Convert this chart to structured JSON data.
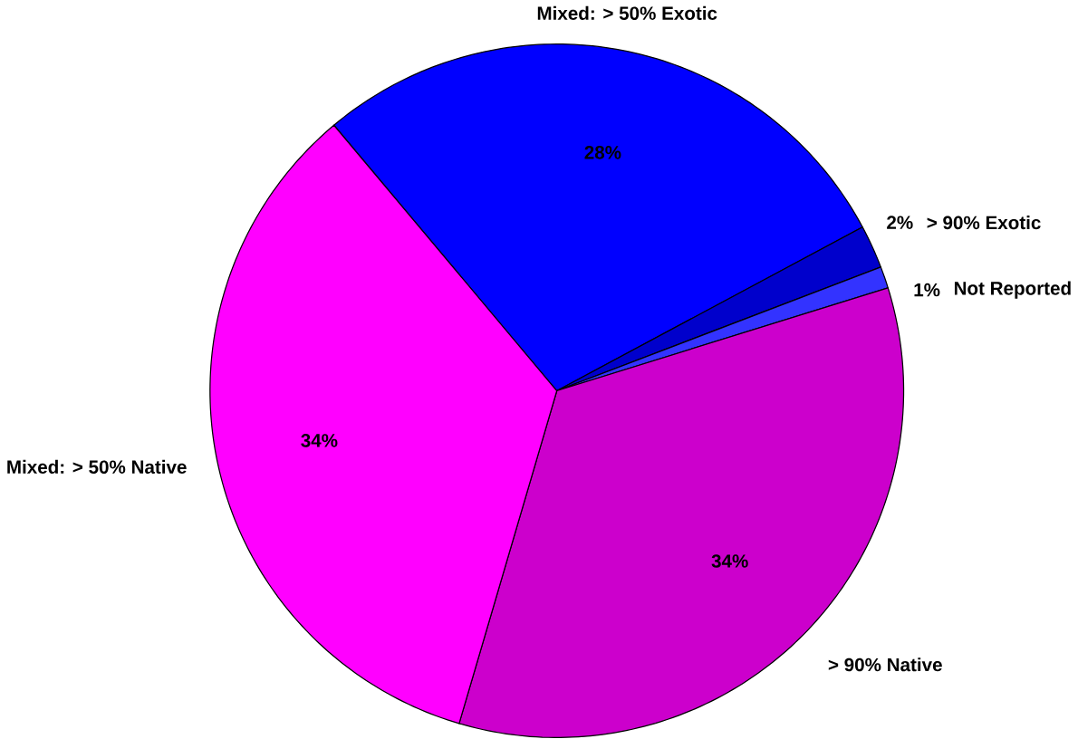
{
  "chart_data": {
    "type": "pie",
    "categories": [
      "Mixed: > 50% Exotic",
      "> 90% Exotic",
      "Not Reported",
      "> 90% Native",
      "Mixed: > 50% Native"
    ],
    "values": [
      28,
      2,
      1,
      34,
      34
    ],
    "value_labels": [
      "28%",
      "2%",
      "1%",
      "34%",
      "34%"
    ],
    "colors": [
      "#0000ff",
      "#0000cc",
      "#3333ff",
      "#cc00cc",
      "#ff00ff"
    ]
  }
}
